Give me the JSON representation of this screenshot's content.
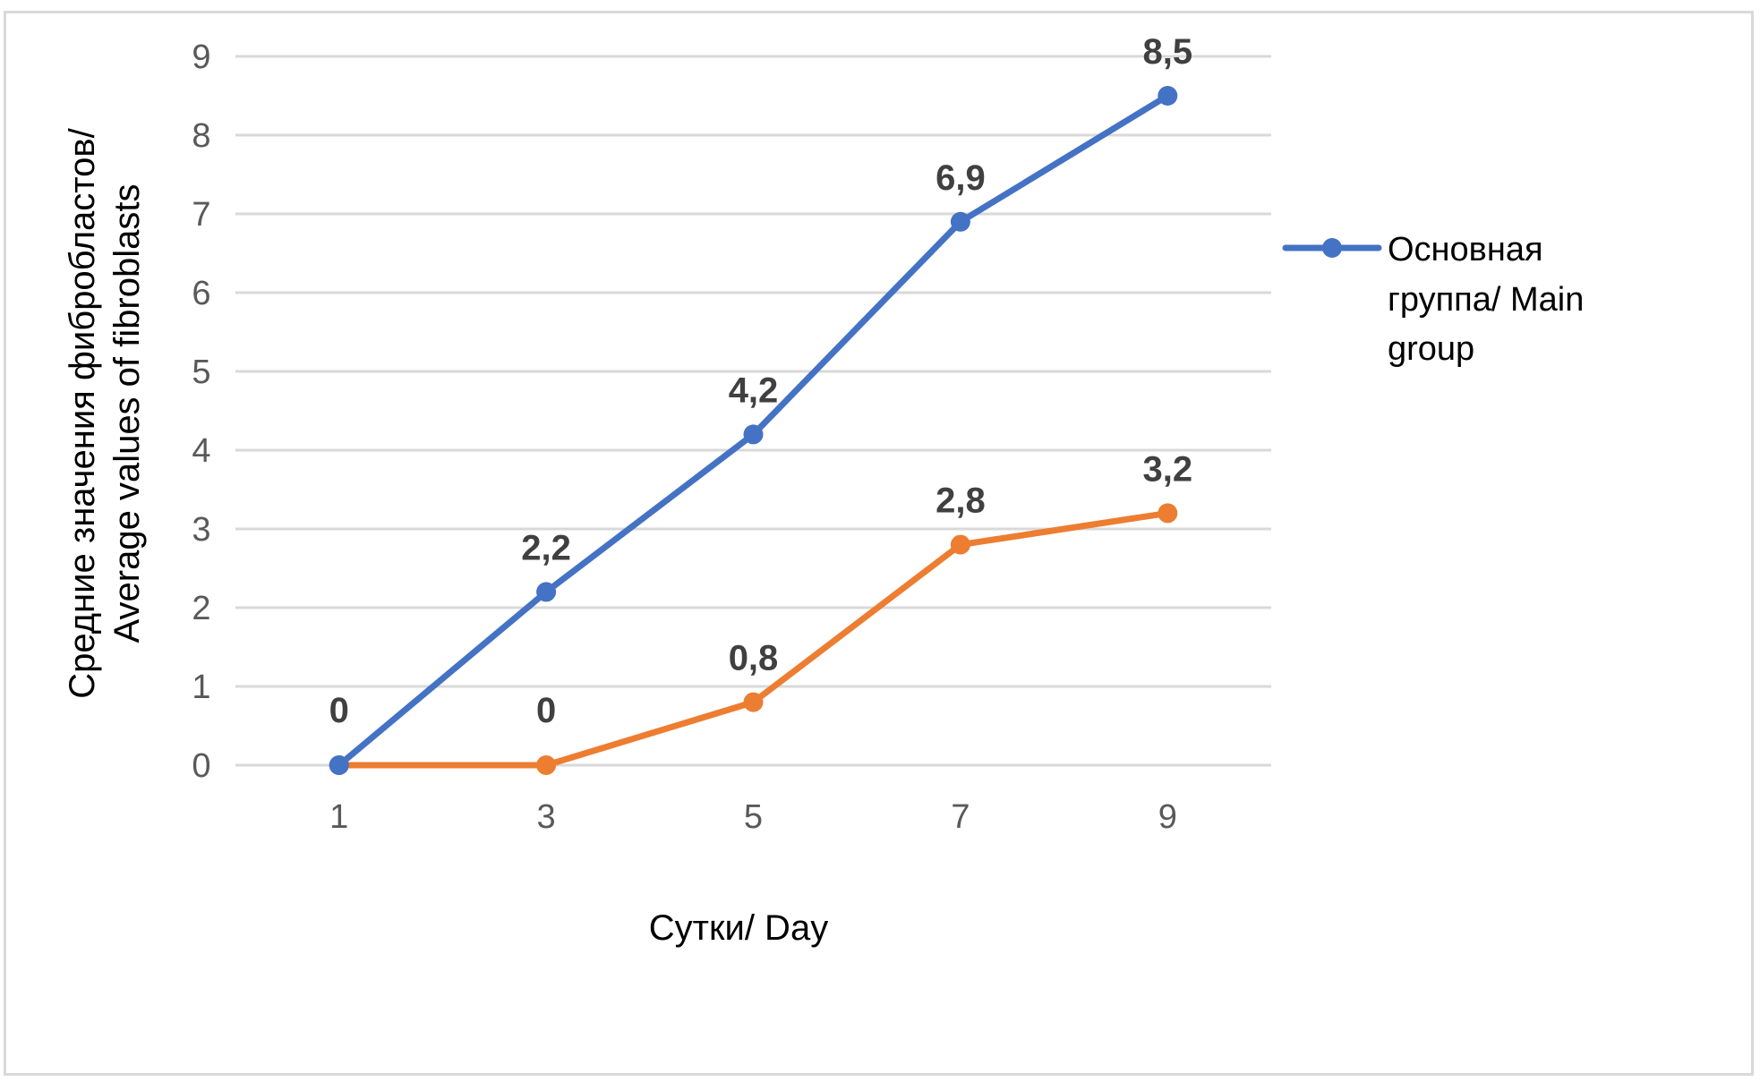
{
  "chart_data": {
    "type": "line",
    "title": "",
    "xlabel": "Сутки/ Day",
    "ylabel_lines": [
      "Средние значения фибробластов/",
      "Average values of fibroblasts"
    ],
    "categories": [
      "1",
      "3",
      "5",
      "7",
      "9"
    ],
    "ylim": [
      0,
      9
    ],
    "yticks": [
      0,
      1,
      2,
      3,
      4,
      5,
      6,
      7,
      8,
      9
    ],
    "grid": true,
    "legend_position": "right",
    "series": [
      {
        "name": "Основная группа/ Main group",
        "legend_lines": [
          "Основная",
          "группа/ Main",
          "group"
        ],
        "color": "#4472c4",
        "values": [
          0,
          2.2,
          4.2,
          6.9,
          8.5
        ],
        "labels": [
          "0",
          "2,2",
          "4,2",
          "6,9",
          "8,5"
        ]
      },
      {
        "color": "#ed7d31",
        "values": [
          0,
          0,
          0.8,
          2.8,
          3.2
        ],
        "labels": [
          "0",
          "0",
          "0,8",
          "2,8",
          "3,2"
        ]
      }
    ]
  }
}
